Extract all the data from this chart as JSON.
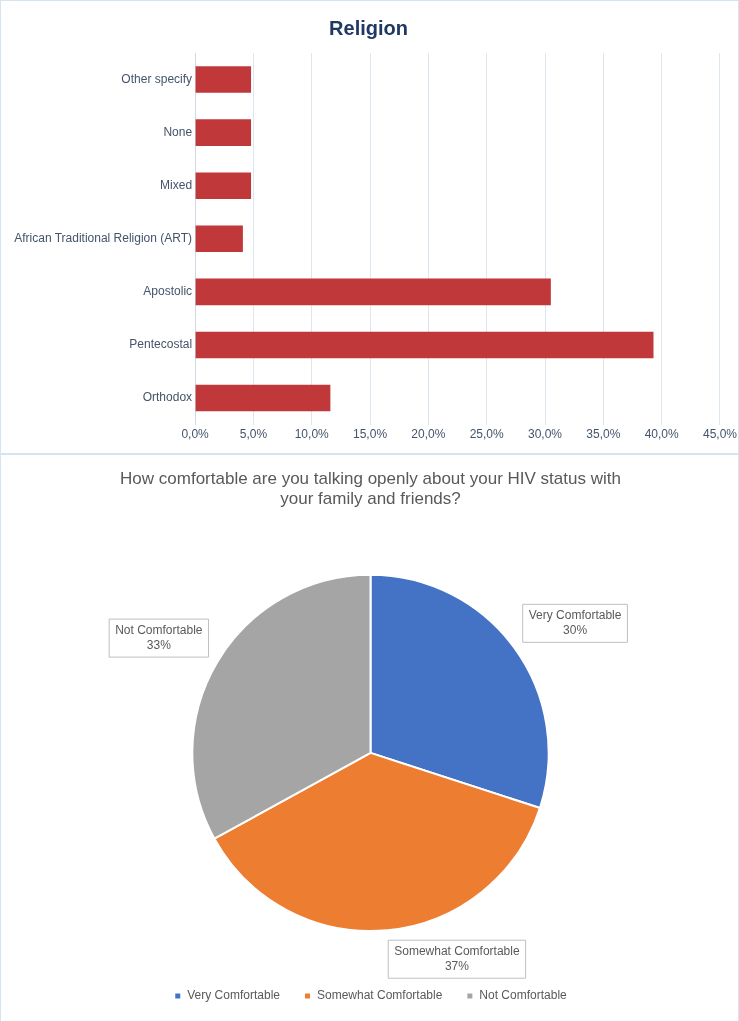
{
  "chart_data": [
    {
      "type": "bar",
      "title": "Religion",
      "orientation": "horizontal",
      "categories": [
        "Other specify",
        "None",
        "Mixed",
        "African Traditional Religion (ART)",
        "Apostolic",
        "Pentecostal",
        "Orthodox"
      ],
      "values": [
        4.8,
        4.8,
        4.8,
        4.1,
        30.5,
        39.3,
        11.6
      ],
      "color": "#c0383a",
      "xlim": [
        0,
        45
      ],
      "xticks": [
        {
          "value": 0,
          "label": "0,0%"
        },
        {
          "value": 5,
          "label": "5,0%"
        },
        {
          "value": 10,
          "label": "10,0%"
        },
        {
          "value": 15,
          "label": "15,0%"
        },
        {
          "value": 20,
          "label": "20,0%"
        },
        {
          "value": 25,
          "label": "25,0%"
        },
        {
          "value": 30,
          "label": "30,0%"
        },
        {
          "value": 35,
          "label": "35,0%"
        },
        {
          "value": 40,
          "label": "40,0%"
        },
        {
          "value": 45,
          "label": "45,0%"
        }
      ],
      "grid": "x",
      "legend": false
    },
    {
      "type": "pie",
      "title": "How comfortable are you talking openly about your HIV status with your family and friends?",
      "categories": [
        "Very Comfortable",
        "Somewhat Comfortable",
        "Not Comfortable"
      ],
      "values": [
        30,
        37,
        33
      ],
      "colors": [
        "#4472c4",
        "#ed7d31",
        "#a5a5a5"
      ],
      "value_labels": [
        "30%",
        "37%",
        "33%"
      ],
      "legend": "bottom"
    }
  ]
}
